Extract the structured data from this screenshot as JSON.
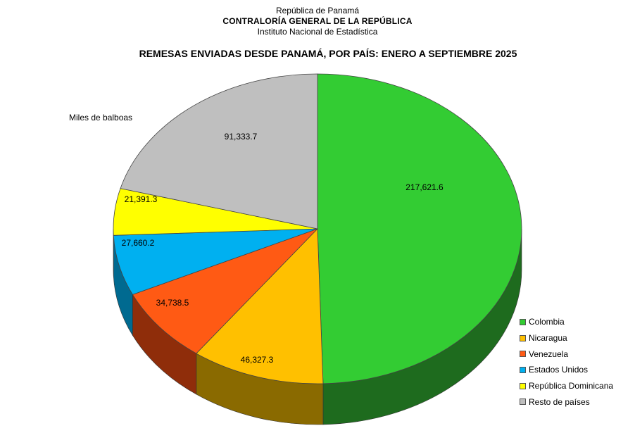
{
  "header": {
    "line1": "República de Panamá",
    "line2": "CONTRALORÍA  GENERAL  DE LA REPÚBLICA",
    "line3": "Instituto Nacional de Estadística"
  },
  "chart_data": {
    "type": "pie",
    "title": "REMESAS ENVIADAS DESDE PANAMÁ, POR PAÍS: ENERO A SEPTIEMBRE 2025",
    "unit_label": "Miles de balboas",
    "legend_position": "bottom-right",
    "slices": [
      {
        "name": "Colombia",
        "value": 217621.6,
        "label": "217,621.6",
        "color": "#33CC33",
        "dark": "#1E6B1E"
      },
      {
        "name": "Nicaragua",
        "value": 46327.3,
        "label": "46,327.3",
        "color": "#FFC000",
        "dark": "#8A6A00"
      },
      {
        "name": "Venezuela",
        "value": 34738.5,
        "label": "34,738.5",
        "color": "#FF5A14",
        "dark": "#8F2D0A"
      },
      {
        "name": "Estados Unidos",
        "value": 27660.2,
        "label": "27,660.2",
        "color": "#00B0F0",
        "dark": "#006A90"
      },
      {
        "name": "República Dominicana",
        "value": 21391.3,
        "label": "21,391.3",
        "color": "#FFFF00",
        "dark": "#9A9A00"
      },
      {
        "name": "Resto de países",
        "value": 91333.7,
        "label": "91,333.7",
        "color": "#BFBFBF",
        "dark": "#6F6F6F"
      }
    ]
  }
}
